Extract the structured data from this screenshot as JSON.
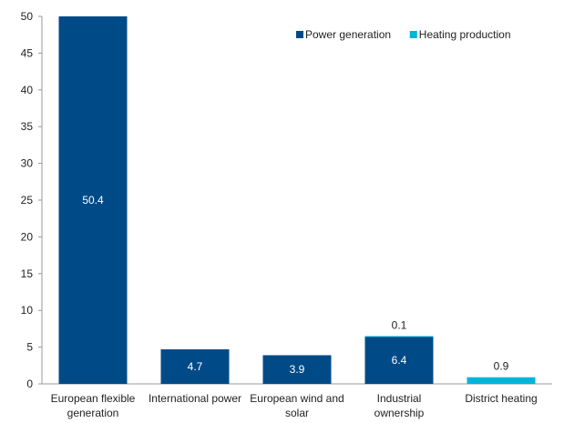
{
  "chart_data": {
    "type": "bar",
    "stacked": true,
    "title": "",
    "xlabel": "",
    "ylabel": "",
    "ylim": [
      0,
      50
    ],
    "yticks": [
      0,
      5,
      10,
      15,
      20,
      25,
      30,
      35,
      40,
      45,
      50
    ],
    "grid": false,
    "legend_position": "top-right",
    "categories": [
      [
        "European flexible",
        "generation"
      ],
      [
        "International power"
      ],
      [
        "European wind and",
        "solar"
      ],
      [
        "Industrial",
        "ownership"
      ],
      [
        "District heating"
      ]
    ],
    "series": [
      {
        "name": "Power generation",
        "color": "#004B87",
        "values": [
          50.4,
          4.7,
          3.9,
          6.4,
          0
        ],
        "labels": [
          "50.4",
          "4.7",
          "3.9",
          "6.4",
          ""
        ]
      },
      {
        "name": "Heating production",
        "color": "#00B5D9",
        "values": [
          0,
          0,
          0,
          0.1,
          0.9
        ],
        "labels": [
          "",
          "",
          "",
          "0.1",
          "0.9"
        ]
      }
    ]
  }
}
